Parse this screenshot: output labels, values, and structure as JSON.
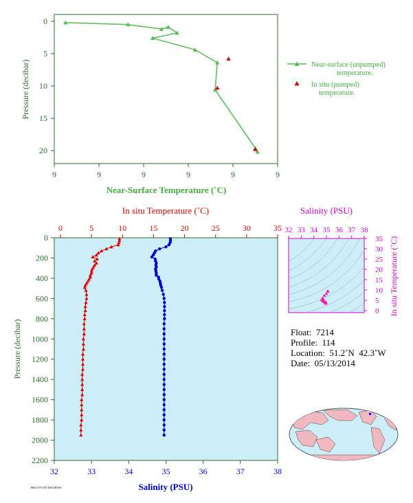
{
  "colors": {
    "axis_green": "#2e6b2e",
    "near_surface": "#55bb55",
    "in_situ": "#dd0000",
    "salinity": "#0000cc",
    "magenta": "#cc00cc",
    "panel_bg": "#cdeef8",
    "ts_bg": "#cdeef8",
    "label_green": "#44aa44"
  },
  "chart_data": [
    {
      "id": "near-surface",
      "type": "line",
      "xlabel": "Near-Surface Temperature (˚C)",
      "ylabel": "Pressure (decibar)",
      "x_tick_labels": [
        "9",
        "9",
        "9",
        "9",
        "9",
        "9"
      ],
      "y_ticks": [
        0,
        5,
        10,
        15,
        20
      ],
      "ylim": [
        0,
        22
      ],
      "legend_position": "right",
      "series": [
        {
          "name": "Near-surface (unpumped)",
          "name_line2": "temperature.",
          "marker": "triangle",
          "x": [
            8.85,
            9.13,
            9.28,
            9.31,
            9.35,
            9.24,
            9.43,
            9.53,
            9.52,
            9.7,
            9.71
          ],
          "y": [
            0.2,
            0.5,
            1.2,
            0.9,
            1.8,
            2.6,
            4.4,
            6.4,
            10.6,
            19.6,
            20.2
          ]
        },
        {
          "name": "In situ (pumped)",
          "name_line2": "temperature.",
          "marker": "triangle",
          "x": [
            9.58,
            9.53,
            9.7
          ],
          "y": [
            5.8,
            10.3,
            19.8
          ]
        }
      ]
    },
    {
      "id": "profile",
      "type": "scatter",
      "title": "In situ Temperature (˚C)",
      "xlabel": "Salinity (PSU)",
      "ylabel": "Pressure (decibar)",
      "temp_ticks": [
        0,
        5,
        10,
        15,
        20,
        25,
        30,
        35
      ],
      "sal_ticks": [
        32,
        33,
        34,
        35,
        36,
        37,
        38
      ],
      "pressure_ticks": [
        0,
        200,
        400,
        600,
        800,
        1000,
        1200,
        1400,
        1600,
        1800,
        2000,
        2200
      ],
      "temp_range": [
        -1,
        35
      ],
      "sal_range": [
        32,
        38
      ],
      "ylim": [
        0,
        2200
      ],
      "temperature": {
        "p": [
          10,
          30,
          50,
          70,
          90,
          110,
          130,
          150,
          170,
          190,
          210,
          230,
          250,
          270,
          290,
          310,
          330,
          350,
          370,
          390,
          410,
          430,
          450,
          470,
          490,
          520,
          560,
          600,
          640,
          680,
          720,
          760,
          800,
          850,
          900,
          950,
          1000,
          1050,
          1100,
          1150,
          1200,
          1250,
          1300,
          1350,
          1400,
          1450,
          1500,
          1550,
          1600,
          1650,
          1700,
          1750,
          1800,
          1850,
          1900,
          1950
        ],
        "t": [
          9.5,
          9.5,
          9.4,
          9.3,
          8.2,
          7.4,
          6.6,
          6.1,
          5.8,
          5.2,
          5.9,
          5.5,
          5.8,
          5.5,
          5.3,
          5.1,
          5.0,
          5.0,
          4.8,
          4.8,
          4.6,
          4.4,
          4.2,
          4.0,
          3.9,
          4.1,
          4.2,
          4.2,
          4.1,
          4.0,
          4.0,
          3.9,
          3.9,
          3.8,
          3.8,
          3.8,
          3.7,
          3.7,
          3.7,
          3.6,
          3.6,
          3.6,
          3.6,
          3.5,
          3.5,
          3.5,
          3.5,
          3.5,
          3.4,
          3.4,
          3.4,
          3.4,
          3.4,
          3.3,
          3.3,
          3.3
        ]
      },
      "salinity": {
        "p": [
          10,
          30,
          50,
          70,
          90,
          110,
          130,
          150,
          170,
          190,
          210,
          230,
          250,
          270,
          290,
          310,
          330,
          350,
          370,
          390,
          410,
          430,
          450,
          470,
          490,
          520,
          560,
          600,
          640,
          680,
          720,
          760,
          800,
          850,
          900,
          950,
          1000,
          1050,
          1100,
          1150,
          1200,
          1250,
          1300,
          1350,
          1400,
          1450,
          1500,
          1550,
          1600,
          1650,
          1700,
          1750,
          1800,
          1850,
          1900,
          1950
        ],
        "s": [
          35.12,
          35.12,
          35.11,
          35.08,
          35.0,
          34.83,
          34.72,
          34.69,
          34.66,
          34.62,
          34.71,
          34.72,
          34.74,
          34.73,
          34.74,
          34.72,
          34.73,
          34.74,
          34.74,
          34.8,
          34.81,
          34.84,
          34.85,
          34.86,
          34.88,
          34.9,
          34.93,
          34.95,
          34.96,
          34.96,
          34.96,
          34.96,
          34.96,
          34.95,
          34.95,
          34.95,
          34.95,
          34.95,
          34.95,
          34.95,
          34.95,
          34.95,
          34.95,
          34.95,
          34.95,
          34.95,
          34.95,
          34.95,
          34.95,
          34.95,
          34.95,
          34.95,
          34.95,
          34.95,
          34.95,
          34.95
        ]
      }
    },
    {
      "id": "ts-diagram",
      "type": "scatter",
      "title": "Salinity (PSU)",
      "ylabel": "In situ Temperature (˚C)",
      "x_ticks": [
        32,
        33,
        34,
        35,
        36,
        37,
        38
      ],
      "y_ticks": [
        0,
        5,
        10,
        15,
        20,
        25,
        30,
        35
      ],
      "xlim": [
        32,
        38
      ],
      "ylim": [
        -1,
        35
      ],
      "points": {
        "s": [
          34.72,
          34.74,
          34.8,
          34.86,
          34.9,
          34.95,
          34.95,
          34.96,
          34.95,
          34.7,
          34.66,
          34.72,
          34.73,
          34.74,
          35.0,
          35.08,
          35.12,
          35.12,
          34.83,
          34.62,
          34.84,
          34.88
        ],
        "t": [
          6.1,
          5.5,
          4.8,
          4.0,
          4.1,
          4.2,
          3.8,
          4.0,
          3.5,
          5.9,
          5.8,
          5.3,
          5.0,
          4.6,
          8.2,
          9.3,
          9.5,
          9.4,
          7.4,
          5.2,
          4.4,
          3.9
        ]
      }
    }
  ],
  "info": {
    "float": "Float:  7214",
    "profile": "Profile:  114",
    "location": "Location:  51.2˚N  42.3˚W",
    "date": "Date:  05/13/2014"
  },
  "credit": "ARGO FLOAT DIAGRAM"
}
